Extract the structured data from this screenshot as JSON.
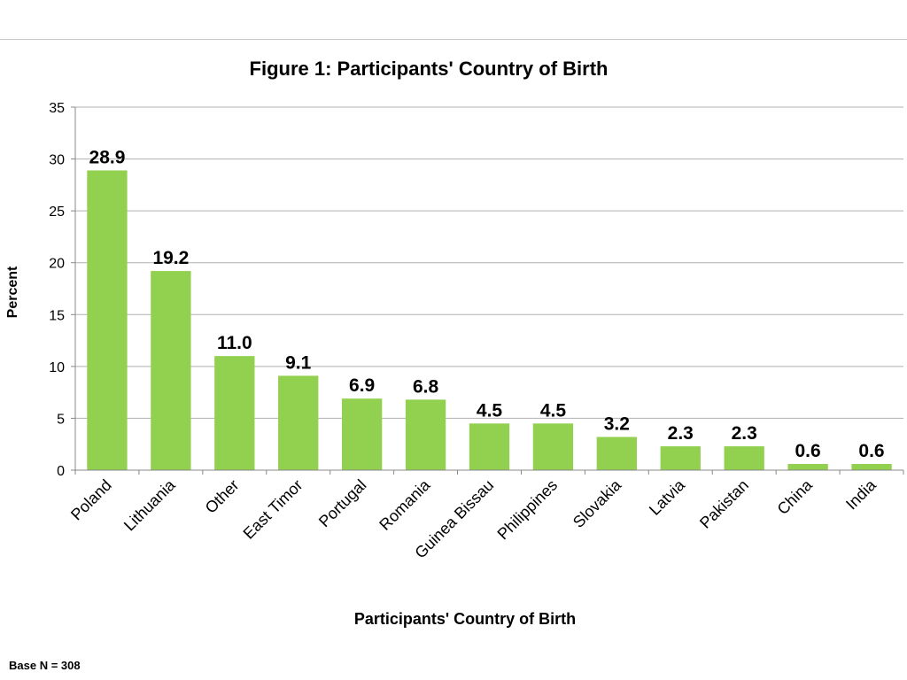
{
  "chart_data": {
    "type": "bar",
    "title": "Figure 1: Participants' Country of Birth",
    "xlabel": "Participants' Country of Birth",
    "ylabel": "Percent",
    "categories": [
      "Poland",
      "Lithuania",
      "Other",
      "East Timor",
      "Portugal",
      "Romania",
      "Guinea Bissau",
      "Philippines",
      "Slovakia",
      "Latvia",
      "Pakistan",
      "China",
      "India"
    ],
    "values": [
      28.9,
      19.2,
      11.0,
      9.1,
      6.9,
      6.8,
      4.5,
      4.5,
      3.2,
      2.3,
      2.3,
      0.6,
      0.6
    ],
    "data_labels": [
      "28.9",
      "19.2",
      "11.0",
      "9.1",
      "6.9",
      "6.8",
      "4.5",
      "4.5",
      "3.2",
      "2.3",
      "2.3",
      "0.6",
      "0.6"
    ],
    "ylim": [
      0,
      35
    ],
    "yticks": [
      "0",
      "5",
      "10",
      "15",
      "20",
      "25",
      "30",
      "35"
    ],
    "grid": true,
    "bar_color": "#92d050"
  },
  "footnote": "Base N = 308"
}
